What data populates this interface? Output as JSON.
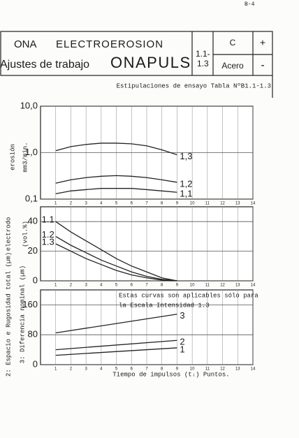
{
  "header": {
    "page_ref": "B-4",
    "company": "ONA",
    "product_line": "ELECTROEROSION",
    "subtitle": "Ajustes de trabajo",
    "model": "ONAPULS",
    "table_ref": [
      "1.1-",
      "1.3"
    ],
    "material_code": "C",
    "material": "Acero",
    "plus": "+",
    "minus": "-"
  },
  "test_conditions": "Estipulaciones de ensayo Tabla NºB1.1-1.3",
  "chart_data": [
    {
      "type": "line",
      "log_y": true,
      "y_label": [
        "erosión",
        "mm3/min."
      ],
      "ylim": [
        0.1,
        10
      ],
      "yticks": [
        {
          "value": 10,
          "label": "10,0"
        },
        {
          "value": 1,
          "label": "1,0"
        },
        {
          "value": 0.1,
          "label": "0,1"
        }
      ],
      "xlim": [
        0,
        14
      ],
      "xticks": [
        1,
        2,
        3,
        4,
        5,
        6,
        7,
        8,
        9,
        10,
        11,
        12,
        13,
        14
      ],
      "grid": true,
      "x": [
        1,
        2,
        3,
        4,
        5,
        6,
        7,
        8,
        9
      ],
      "series": [
        {
          "name": "1,3",
          "color": "#222222",
          "values": [
            1.1,
            1.35,
            1.5,
            1.6,
            1.6,
            1.55,
            1.4,
            1.15,
            0.9
          ]
        },
        {
          "name": "1,2",
          "color": "#222222",
          "values": [
            0.22,
            0.26,
            0.29,
            0.31,
            0.32,
            0.31,
            0.29,
            0.26,
            0.23
          ]
        },
        {
          "name": "1,1",
          "color": "#222222",
          "values": [
            0.13,
            0.15,
            0.16,
            0.17,
            0.17,
            0.17,
            0.16,
            0.15,
            0.14
          ]
        }
      ]
    },
    {
      "type": "line",
      "y_label": [
        "electrodo",
        "(vol.%)"
      ],
      "ylim": [
        0,
        50
      ],
      "yticks": [
        0,
        20,
        40
      ],
      "xlim": [
        0,
        14
      ],
      "xticks": [
        1,
        2,
        3,
        4,
        5,
        6,
        7,
        8,
        9,
        10,
        11,
        12,
        13,
        14
      ],
      "grid": true,
      "x": [
        1,
        2,
        3,
        4,
        5,
        6,
        7,
        8,
        9
      ],
      "series": [
        {
          "name": "1.1",
          "color": "#222222",
          "values": [
            40,
            33,
            27,
            21,
            15,
            10,
            6,
            2,
            0
          ]
        },
        {
          "name": "1.2",
          "color": "#222222",
          "values": [
            30,
            24,
            19,
            14,
            10,
            6,
            3,
            1,
            0
          ]
        },
        {
          "name": "1.3",
          "color": "#222222",
          "values": [
            25,
            20,
            15,
            11,
            7,
            4,
            2,
            0.5,
            0
          ]
        }
      ]
    },
    {
      "type": "line",
      "y_label": [
        "2: Espacio e Rugosidad total (µm)",
        "3: Diferencia nominal (µm)"
      ],
      "annotation": [
        "Estas curvas son aplicables sólo para",
        "la Escala Intensidad 1.3"
      ],
      "x_label": "Tiempo de impulsos  (tᵢ) Puntos.",
      "ylim": [
        0,
        200
      ],
      "yticks": [
        0,
        80,
        160
      ],
      "xlim": [
        0,
        14
      ],
      "xticks": [
        1,
        2,
        3,
        4,
        5,
        6,
        7,
        8,
        9,
        10,
        11,
        12,
        13,
        14
      ],
      "grid": true,
      "x": [
        1,
        9
      ],
      "series": [
        {
          "name": "3",
          "color": "#222222",
          "values": [
            85,
            135
          ]
        },
        {
          "name": "2",
          "color": "#222222",
          "values": [
            40,
            65
          ]
        },
        {
          "name": "1",
          "color": "#222222",
          "values": [
            25,
            45
          ]
        }
      ]
    }
  ]
}
